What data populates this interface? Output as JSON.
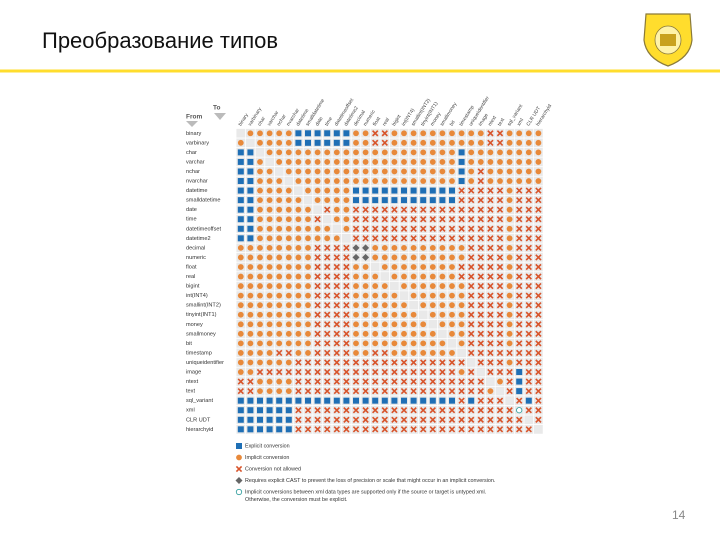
{
  "header": {
    "title": "Преобразование типов"
  },
  "page_number": "14",
  "matrix": {
    "to_label": "To",
    "from_label": "From",
    "types": [
      "binary",
      "varbinary",
      "char",
      "varchar",
      "nchar",
      "nvarchar",
      "datetime",
      "smalldatetime",
      "date",
      "time",
      "datetimeoffset",
      "datetime2",
      "decimal",
      "numeric",
      "float",
      "real",
      "bigint",
      "int(INT4)",
      "smallint(INT2)",
      "tinyint(INT1)",
      "money",
      "smallmoney",
      "bit",
      "timestamp",
      "uniqueidentifier",
      "image",
      "ntext",
      "text",
      "sql_variant",
      "xml",
      "CLR UDT",
      "hierarchyid"
    ],
    "rows": [
      [
        null,
        "I",
        "I",
        "I",
        "I",
        "I",
        "E",
        "E",
        "E",
        "E",
        "E",
        "E",
        "I",
        "I",
        "X",
        "X",
        "I",
        "I",
        "I",
        "I",
        "I",
        "I",
        "I",
        "I",
        "I",
        "I",
        "X",
        "X",
        "I",
        "I",
        "I",
        "I"
      ],
      [
        "I",
        null,
        "I",
        "I",
        "I",
        "I",
        "E",
        "E",
        "E",
        "E",
        "E",
        "E",
        "I",
        "I",
        "X",
        "X",
        "I",
        "I",
        "I",
        "I",
        "I",
        "I",
        "I",
        "I",
        "I",
        "I",
        "X",
        "X",
        "I",
        "I",
        "I",
        "I"
      ],
      [
        "E",
        "E",
        null,
        "I",
        "I",
        "I",
        "I",
        "I",
        "I",
        "I",
        "I",
        "I",
        "I",
        "I",
        "I",
        "I",
        "I",
        "I",
        "I",
        "I",
        "I",
        "I",
        "I",
        "E",
        "I",
        "I",
        "I",
        "I",
        "I",
        "I",
        "I",
        "I"
      ],
      [
        "E",
        "E",
        "I",
        null,
        "I",
        "I",
        "I",
        "I",
        "I",
        "I",
        "I",
        "I",
        "I",
        "I",
        "I",
        "I",
        "I",
        "I",
        "I",
        "I",
        "I",
        "I",
        "I",
        "E",
        "I",
        "I",
        "I",
        "I",
        "I",
        "I",
        "I",
        "I"
      ],
      [
        "E",
        "E",
        "I",
        "I",
        null,
        "I",
        "I",
        "I",
        "I",
        "I",
        "I",
        "I",
        "I",
        "I",
        "I",
        "I",
        "I",
        "I",
        "I",
        "I",
        "I",
        "I",
        "I",
        "E",
        "I",
        "X",
        "I",
        "I",
        "I",
        "I",
        "I",
        "I"
      ],
      [
        "E",
        "E",
        "I",
        "I",
        "I",
        null,
        "I",
        "I",
        "I",
        "I",
        "I",
        "I",
        "I",
        "I",
        "I",
        "I",
        "I",
        "I",
        "I",
        "I",
        "I",
        "I",
        "I",
        "E",
        "I",
        "X",
        "I",
        "I",
        "I",
        "I",
        "I",
        "I"
      ],
      [
        "E",
        "E",
        "I",
        "I",
        "I",
        "I",
        null,
        "I",
        "I",
        "I",
        "I",
        "I",
        "E",
        "E",
        "E",
        "E",
        "E",
        "E",
        "E",
        "E",
        "E",
        "E",
        "E",
        "X",
        "X",
        "X",
        "X",
        "X",
        "I",
        "X",
        "X",
        "X"
      ],
      [
        "E",
        "E",
        "I",
        "I",
        "I",
        "I",
        "I",
        null,
        "I",
        "I",
        "I",
        "I",
        "E",
        "E",
        "E",
        "E",
        "E",
        "E",
        "E",
        "E",
        "E",
        "E",
        "E",
        "X",
        "X",
        "X",
        "X",
        "X",
        "I",
        "X",
        "X",
        "X"
      ],
      [
        "E",
        "E",
        "I",
        "I",
        "I",
        "I",
        "I",
        "I",
        null,
        "X",
        "I",
        "I",
        "X",
        "X",
        "X",
        "X",
        "X",
        "X",
        "X",
        "X",
        "X",
        "X",
        "X",
        "X",
        "X",
        "X",
        "X",
        "X",
        "I",
        "X",
        "X",
        "X"
      ],
      [
        "E",
        "E",
        "I",
        "I",
        "I",
        "I",
        "I",
        "I",
        "X",
        null,
        "I",
        "I",
        "X",
        "X",
        "X",
        "X",
        "X",
        "X",
        "X",
        "X",
        "X",
        "X",
        "X",
        "X",
        "X",
        "X",
        "X",
        "X",
        "I",
        "X",
        "X",
        "X"
      ],
      [
        "E",
        "E",
        "I",
        "I",
        "I",
        "I",
        "I",
        "I",
        "I",
        "I",
        null,
        "I",
        "X",
        "X",
        "X",
        "X",
        "X",
        "X",
        "X",
        "X",
        "X",
        "X",
        "X",
        "X",
        "X",
        "X",
        "X",
        "X",
        "I",
        "X",
        "X",
        "X"
      ],
      [
        "E",
        "E",
        "I",
        "I",
        "I",
        "I",
        "I",
        "I",
        "I",
        "I",
        "I",
        null,
        "X",
        "X",
        "X",
        "X",
        "X",
        "X",
        "X",
        "X",
        "X",
        "X",
        "X",
        "X",
        "X",
        "X",
        "X",
        "X",
        "I",
        "X",
        "X",
        "X"
      ],
      [
        "I",
        "I",
        "I",
        "I",
        "I",
        "I",
        "I",
        "I",
        "X",
        "X",
        "X",
        "X",
        "D",
        "D",
        "I",
        "I",
        "I",
        "I",
        "I",
        "I",
        "I",
        "I",
        "I",
        "I",
        "X",
        "X",
        "X",
        "X",
        "I",
        "X",
        "X",
        "X"
      ],
      [
        "I",
        "I",
        "I",
        "I",
        "I",
        "I",
        "I",
        "I",
        "X",
        "X",
        "X",
        "X",
        "D",
        "D",
        "I",
        "I",
        "I",
        "I",
        "I",
        "I",
        "I",
        "I",
        "I",
        "I",
        "X",
        "X",
        "X",
        "X",
        "I",
        "X",
        "X",
        "X"
      ],
      [
        "I",
        "I",
        "I",
        "I",
        "I",
        "I",
        "I",
        "I",
        "X",
        "X",
        "X",
        "X",
        "I",
        "I",
        null,
        "I",
        "I",
        "I",
        "I",
        "I",
        "I",
        "I",
        "I",
        "X",
        "X",
        "X",
        "X",
        "X",
        "I",
        "X",
        "X",
        "X"
      ],
      [
        "I",
        "I",
        "I",
        "I",
        "I",
        "I",
        "I",
        "I",
        "X",
        "X",
        "X",
        "X",
        "I",
        "I",
        "I",
        null,
        "I",
        "I",
        "I",
        "I",
        "I",
        "I",
        "I",
        "X",
        "X",
        "X",
        "X",
        "X",
        "I",
        "X",
        "X",
        "X"
      ],
      [
        "I",
        "I",
        "I",
        "I",
        "I",
        "I",
        "I",
        "I",
        "X",
        "X",
        "X",
        "X",
        "I",
        "I",
        "I",
        "I",
        null,
        "I",
        "I",
        "I",
        "I",
        "I",
        "I",
        "I",
        "X",
        "X",
        "X",
        "X",
        "I",
        "X",
        "X",
        "X"
      ],
      [
        "I",
        "I",
        "I",
        "I",
        "I",
        "I",
        "I",
        "I",
        "X",
        "X",
        "X",
        "X",
        "I",
        "I",
        "I",
        "I",
        "I",
        null,
        "I",
        "I",
        "I",
        "I",
        "I",
        "I",
        "X",
        "X",
        "X",
        "X",
        "I",
        "X",
        "X",
        "X"
      ],
      [
        "I",
        "I",
        "I",
        "I",
        "I",
        "I",
        "I",
        "I",
        "X",
        "X",
        "X",
        "X",
        "I",
        "I",
        "I",
        "I",
        "I",
        "I",
        null,
        "I",
        "I",
        "I",
        "I",
        "I",
        "X",
        "X",
        "X",
        "X",
        "I",
        "X",
        "X",
        "X"
      ],
      [
        "I",
        "I",
        "I",
        "I",
        "I",
        "I",
        "I",
        "I",
        "X",
        "X",
        "X",
        "X",
        "I",
        "I",
        "I",
        "I",
        "I",
        "I",
        "I",
        null,
        "I",
        "I",
        "I",
        "I",
        "X",
        "X",
        "X",
        "X",
        "I",
        "X",
        "X",
        "X"
      ],
      [
        "I",
        "I",
        "I",
        "I",
        "I",
        "I",
        "I",
        "I",
        "X",
        "X",
        "X",
        "X",
        "I",
        "I",
        "I",
        "I",
        "I",
        "I",
        "I",
        "I",
        null,
        "I",
        "I",
        "I",
        "X",
        "X",
        "X",
        "X",
        "I",
        "X",
        "X",
        "X"
      ],
      [
        "I",
        "I",
        "I",
        "I",
        "I",
        "I",
        "I",
        "I",
        "X",
        "X",
        "X",
        "X",
        "I",
        "I",
        "I",
        "I",
        "I",
        "I",
        "I",
        "I",
        "I",
        null,
        "I",
        "I",
        "X",
        "X",
        "X",
        "X",
        "I",
        "X",
        "X",
        "X"
      ],
      [
        "I",
        "I",
        "I",
        "I",
        "I",
        "I",
        "I",
        "I",
        "X",
        "X",
        "X",
        "X",
        "I",
        "I",
        "I",
        "I",
        "I",
        "I",
        "I",
        "I",
        "I",
        "I",
        null,
        "I",
        "X",
        "X",
        "X",
        "X",
        "I",
        "X",
        "X",
        "X"
      ],
      [
        "I",
        "I",
        "I",
        "I",
        "X",
        "X",
        "I",
        "I",
        "X",
        "X",
        "X",
        "X",
        "I",
        "I",
        "X",
        "X",
        "I",
        "I",
        "I",
        "I",
        "I",
        "I",
        "I",
        null,
        "X",
        "X",
        "X",
        "X",
        "X",
        "X",
        "X",
        "X"
      ],
      [
        "I",
        "I",
        "I",
        "I",
        "I",
        "I",
        "X",
        "X",
        "X",
        "X",
        "X",
        "X",
        "X",
        "X",
        "X",
        "X",
        "X",
        "X",
        "X",
        "X",
        "X",
        "X",
        "X",
        "X",
        null,
        "X",
        "X",
        "X",
        "I",
        "X",
        "X",
        "X"
      ],
      [
        "I",
        "I",
        "X",
        "X",
        "X",
        "X",
        "X",
        "X",
        "X",
        "X",
        "X",
        "X",
        "X",
        "X",
        "X",
        "X",
        "X",
        "X",
        "X",
        "X",
        "X",
        "X",
        "X",
        "I",
        "X",
        null,
        "X",
        "X",
        "X",
        "E",
        "X",
        "X"
      ],
      [
        "X",
        "X",
        "I",
        "I",
        "I",
        "I",
        "X",
        "X",
        "X",
        "X",
        "X",
        "X",
        "X",
        "X",
        "X",
        "X",
        "X",
        "X",
        "X",
        "X",
        "X",
        "X",
        "X",
        "X",
        "X",
        "X",
        null,
        "I",
        "X",
        "E",
        "X",
        "X"
      ],
      [
        "X",
        "X",
        "I",
        "I",
        "I",
        "I",
        "X",
        "X",
        "X",
        "X",
        "X",
        "X",
        "X",
        "X",
        "X",
        "X",
        "X",
        "X",
        "X",
        "X",
        "X",
        "X",
        "X",
        "X",
        "X",
        "X",
        "I",
        null,
        "X",
        "E",
        "X",
        "X"
      ],
      [
        "E",
        "E",
        "E",
        "E",
        "E",
        "E",
        "E",
        "E",
        "E",
        "E",
        "E",
        "E",
        "E",
        "E",
        "E",
        "E",
        "E",
        "E",
        "E",
        "E",
        "E",
        "E",
        "E",
        "X",
        "E",
        "X",
        "X",
        "X",
        null,
        "X",
        "E",
        "X"
      ],
      [
        "E",
        "E",
        "E",
        "E",
        "E",
        "E",
        "X",
        "X",
        "X",
        "X",
        "X",
        "X",
        "X",
        "X",
        "X",
        "X",
        "X",
        "X",
        "X",
        "X",
        "X",
        "X",
        "X",
        "X",
        "X",
        "X",
        "X",
        "X",
        "X",
        "O",
        "X",
        "X"
      ],
      [
        "E",
        "E",
        "E",
        "E",
        "E",
        "E",
        "X",
        "X",
        "X",
        "X",
        "X",
        "X",
        "X",
        "X",
        "X",
        "X",
        "X",
        "X",
        "X",
        "X",
        "X",
        "X",
        "X",
        "X",
        "X",
        "X",
        "X",
        "X",
        "X",
        "X",
        null,
        "X"
      ],
      [
        "E",
        "E",
        "E",
        "E",
        "E",
        "E",
        "X",
        "X",
        "X",
        "X",
        "X",
        "X",
        "X",
        "X",
        "X",
        "X",
        "X",
        "X",
        "X",
        "X",
        "X",
        "X",
        "X",
        "X",
        "X",
        "X",
        "X",
        "X",
        "X",
        "X",
        "X",
        null
      ]
    ],
    "legend": [
      {
        "code": "E",
        "text": [
          "Explicit conversion"
        ]
      },
      {
        "code": "I",
        "text": [
          "Implicit conversion"
        ]
      },
      {
        "code": "X",
        "text": [
          "Conversion not allowed"
        ]
      },
      {
        "code": "D",
        "text": [
          "Requires explicit CAST to prevent the loss of precision or scale that might occur in an implicit conversion."
        ]
      },
      {
        "code": "O",
        "text": [
          "Implicit conversions between xml data types are supported only if the source or target is untyped xml.",
          "Otherwise, the conversion must be explicit."
        ]
      }
    ]
  }
}
